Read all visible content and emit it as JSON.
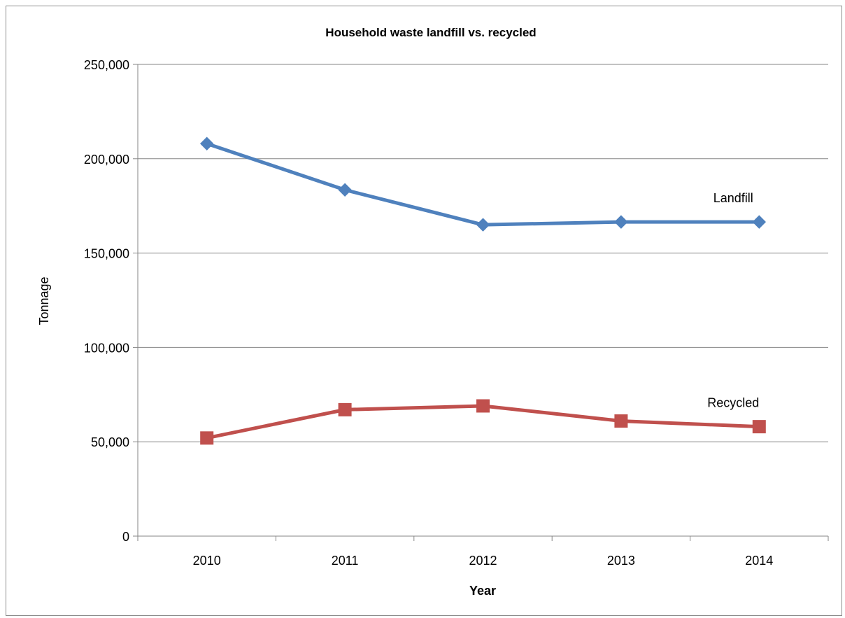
{
  "chart_data": {
    "type": "line",
    "title": "Household waste landfill vs. recycled",
    "xlabel": "Year",
    "ylabel": "Tonnage",
    "categories": [
      "2010",
      "2011",
      "2012",
      "2013",
      "2014"
    ],
    "ylim": [
      0,
      250000
    ],
    "yticks": [
      0,
      50000,
      100000,
      150000,
      200000,
      250000
    ],
    "ytick_labels": [
      "0",
      "50,000",
      "100,000",
      "150,000",
      "200,000",
      "250,000"
    ],
    "grid": true,
    "legend": "none",
    "series": [
      {
        "name": "Landfill",
        "values": [
          208000,
          183500,
          165000,
          166500,
          166500
        ],
        "color": "#4f81bd",
        "marker": "diamond"
      },
      {
        "name": "Recycled",
        "values": [
          52000,
          67000,
          69000,
          61000,
          58000
        ],
        "color": "#c0504d",
        "marker": "square"
      }
    ]
  }
}
